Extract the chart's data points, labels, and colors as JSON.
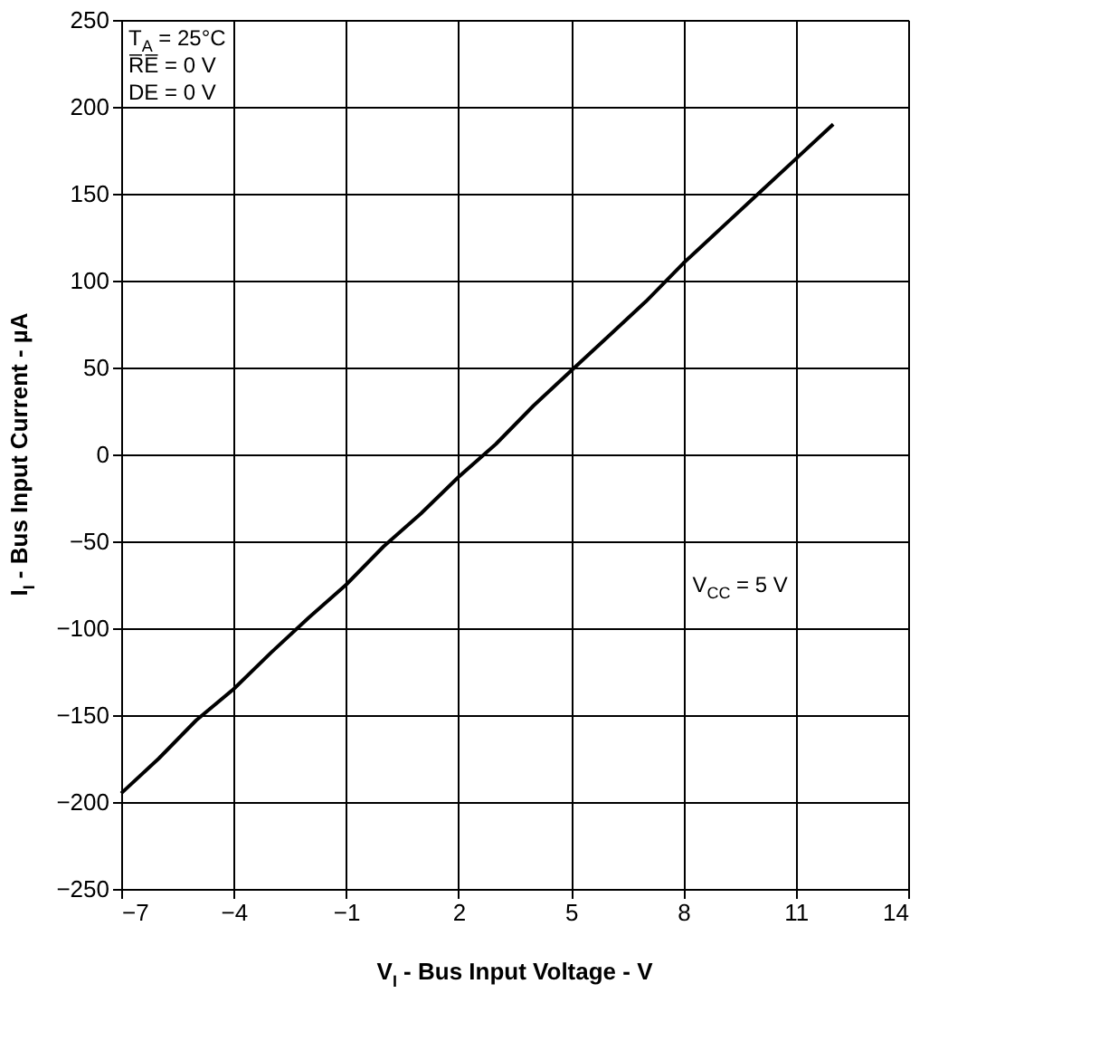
{
  "chart_data": {
    "type": "line",
    "xlabel": "V$_{I}$ - Bus Input Voltage - V",
    "ylabel": "I$_{I}$ - Bus Input Current - µA",
    "x": [
      -7,
      -6,
      -5,
      -4,
      -3,
      -2,
      -1,
      0,
      1,
      2,
      3,
      4,
      5,
      6,
      7,
      8,
      9,
      10,
      11,
      12
    ],
    "series": [
      {
        "name": "V$_{CC}$ = 5 V",
        "color": "#000000",
        "values": [
          -195,
          -175,
          -153,
          -135,
          -114,
          -94,
          -75,
          -53,
          -34,
          -13,
          6,
          28,
          48,
          68,
          88,
          110,
          130,
          150,
          170,
          190
        ]
      }
    ],
    "xlim": [
      -7,
      14
    ],
    "xticks": [
      -7,
      -4,
      -1,
      2,
      5,
      8,
      11,
      14
    ],
    "ylim": [
      -250,
      250
    ],
    "yticks": [
      -250,
      -200,
      -150,
      -100,
      -50,
      0,
      50,
      100,
      150,
      200,
      250
    ],
    "annotations": [
      "T$_{A}$ = 25°C",
      "R̅E̅ = 0 V",
      "DE = 0 V"
    ],
    "grid": true,
    "marker": "none",
    "line_style": "solid"
  }
}
